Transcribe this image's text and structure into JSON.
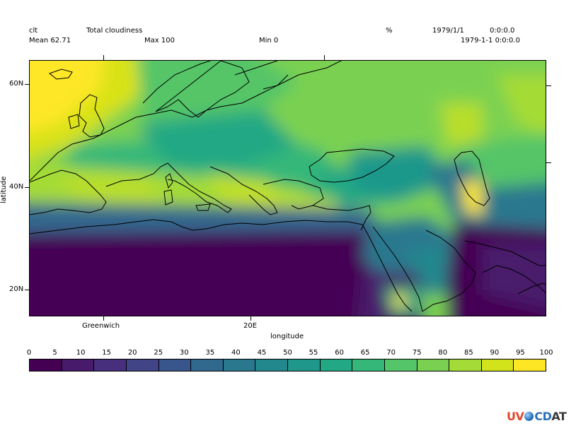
{
  "header": {
    "variable": "clt",
    "long_name": "Total cloudiness",
    "units": "%",
    "date1": "1979/1/1",
    "time1": "0:0:0.0",
    "date2": "1979-1-1 0:0:0.0",
    "mean": "Mean 62.71",
    "max": "Max 100",
    "min": "Min 0"
  },
  "axes": {
    "xlabel": "longitude",
    "ylabel": "latitude",
    "xticks": [
      "Greenwich",
      "20E"
    ],
    "yticks": [
      "60N",
      "40N",
      "20N"
    ]
  },
  "colorbar": {
    "labels": [
      "0",
      "5",
      "10",
      "15",
      "20",
      "25",
      "30",
      "35",
      "40",
      "45",
      "50",
      "55",
      "60",
      "65",
      "70",
      "75",
      "80",
      "85",
      "90",
      "95",
      "100"
    ],
    "colors": [
      "#440154",
      "#481a6c",
      "#472f7d",
      "#414487",
      "#39568c",
      "#31688e",
      "#2a788e",
      "#23888e",
      "#1f988b",
      "#22a884",
      "#35b779",
      "#54c568",
      "#7ad151",
      "#a5db36",
      "#d2e21b",
      "#fde725"
    ]
  },
  "logo": {
    "uv": "UV",
    "cd": "CD",
    "at": "AT"
  }
}
